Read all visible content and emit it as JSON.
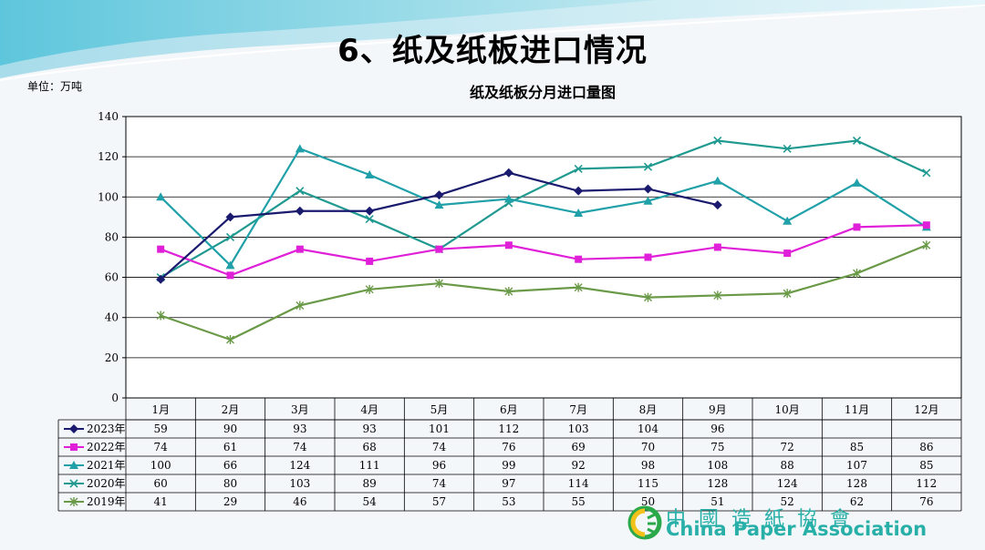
{
  "slide": {
    "title": "6、纸及纸板进口情况",
    "unit": "单位：万吨"
  },
  "colors": {
    "2023": "#1a1a6e",
    "2022": "#e020d8",
    "2021": "#20a0a8",
    "2020": "#209a90",
    "2019": "#6a9a48"
  },
  "chart_data": {
    "type": "line",
    "title": "纸及纸板分月进口量图",
    "xlabel": "",
    "ylabel": "",
    "categories": [
      "1月",
      "2月",
      "3月",
      "4月",
      "5月",
      "6月",
      "7月",
      "8月",
      "9月",
      "10月",
      "11月",
      "12月"
    ],
    "ylim": [
      0,
      140
    ],
    "yticks": [
      0,
      20,
      40,
      60,
      80,
      100,
      120,
      140
    ],
    "grid": true,
    "legend": "data-table",
    "series": [
      {
        "name": "2023年",
        "marker": "diamond",
        "color": "#1a1a6e",
        "values": [
          59,
          90,
          93,
          93,
          101,
          112,
          103,
          104,
          96,
          null,
          null,
          null
        ]
      },
      {
        "name": "2022年",
        "marker": "square",
        "color": "#e020d8",
        "values": [
          74,
          61,
          74,
          68,
          74,
          76,
          69,
          70,
          75,
          72,
          85,
          86
        ]
      },
      {
        "name": "2021年",
        "marker": "triangle",
        "color": "#20a0a8",
        "values": [
          100,
          66,
          124,
          111,
          96,
          99,
          92,
          98,
          108,
          88,
          107,
          85
        ]
      },
      {
        "name": "2020年",
        "marker": "x",
        "color": "#209a90",
        "values": [
          60,
          80,
          103,
          89,
          74,
          97,
          114,
          115,
          128,
          124,
          128,
          112
        ]
      },
      {
        "name": "2019年",
        "marker": "star",
        "color": "#6a9a48",
        "values": [
          41,
          29,
          46,
          54,
          57,
          53,
          55,
          50,
          51,
          52,
          62,
          76
        ]
      }
    ]
  },
  "logo": {
    "cn": "中國造紙協會",
    "en": "China Paper Association"
  }
}
